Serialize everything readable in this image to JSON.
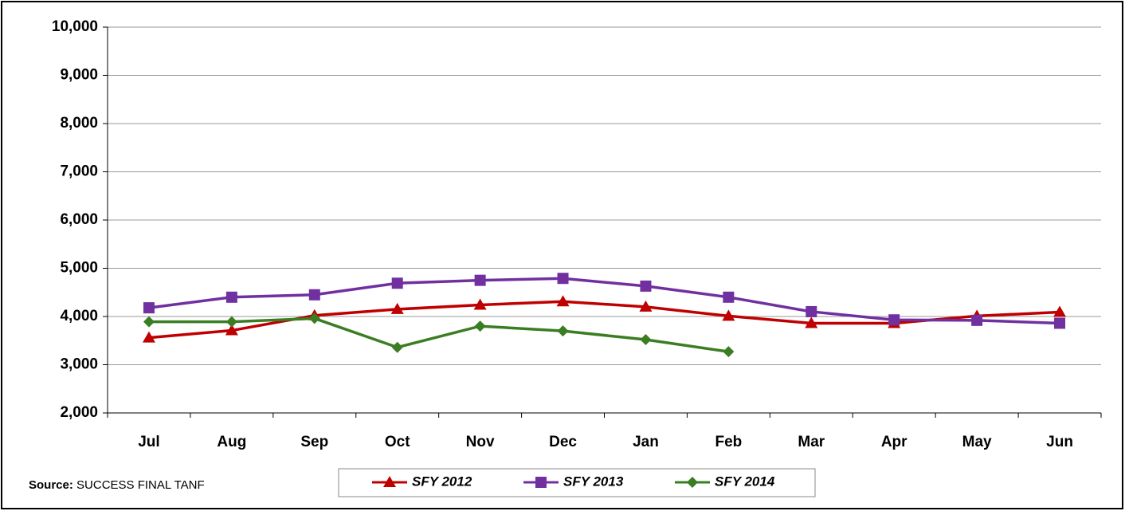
{
  "chart_data": {
    "type": "line",
    "categories": [
      "Jul",
      "Aug",
      "Sep",
      "Oct",
      "Nov",
      "Dec",
      "Jan",
      "Feb",
      "Mar",
      "Apr",
      "May",
      "Jun"
    ],
    "series": [
      {
        "name": "SFY 2012",
        "color": "#c00000",
        "marker": "triangle",
        "values": [
          3560,
          3710,
          4020,
          4150,
          4240,
          4310,
          4200,
          4010,
          3860,
          3860,
          4010,
          4090
        ]
      },
      {
        "name": "SFY 2013",
        "color": "#7030a0",
        "marker": "square",
        "values": [
          4180,
          4400,
          4450,
          4690,
          4750,
          4790,
          4630,
          4400,
          4100,
          3930,
          3920,
          3860
        ]
      },
      {
        "name": "SFY 2014",
        "color": "#3a7d22",
        "marker": "diamond",
        "values": [
          3890,
          3890,
          3960,
          3360,
          3800,
          3700,
          3520,
          3270,
          null,
          null,
          null,
          null
        ]
      }
    ],
    "ylim": [
      2000,
      10000
    ],
    "yticks": [
      {
        "value": 2000,
        "label": "2,000"
      },
      {
        "value": 3000,
        "label": "3,000"
      },
      {
        "value": 4000,
        "label": "4,000"
      },
      {
        "value": 5000,
        "label": "5,000"
      },
      {
        "value": 6000,
        "label": "6,000"
      },
      {
        "value": 7000,
        "label": "7,000"
      },
      {
        "value": 8000,
        "label": "8,000"
      },
      {
        "value": 9000,
        "label": "9,000"
      },
      {
        "value": 10000,
        "label": "10,000"
      }
    ],
    "grid": true,
    "legend": "bottom",
    "source_label": "Source:",
    "source": "SUCCESS FINAL TANF"
  }
}
